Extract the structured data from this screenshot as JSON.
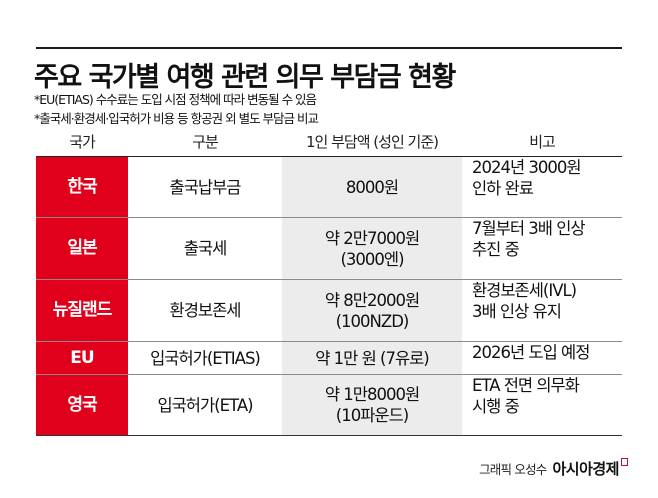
{
  "header": {
    "title": "주요 국가별 여행 관련 의무 부담금 현황",
    "notes": [
      "*EU(ETIAS) 수수료는 도입 시점 정책에 따라 변동될 수 있음",
      "*출국세·환경세·입국허가 비용 등 항공권 외 별도 부담금 비교"
    ]
  },
  "table": {
    "columns": [
      "국가",
      "구분",
      "1인 부담액 (성인 기준)",
      "비고"
    ],
    "rows": [
      {
        "country": "한국",
        "category": "출국납부금",
        "amount": [
          "8000원"
        ],
        "remark": [
          "2024년 3000원",
          "인하 완료"
        ]
      },
      {
        "country": "일본",
        "category": "출국세",
        "amount": [
          "약 2만7000원",
          "(3000엔)"
        ],
        "remark": [
          "7월부터 3배 인상",
          "추진 중"
        ]
      },
      {
        "country": "뉴질랜드",
        "category": "환경보존세",
        "amount": [
          "약 8만2000원",
          "(100NZD)"
        ],
        "remark": [
          "환경보존세(IVL)",
          "3배 인상 유지"
        ]
      },
      {
        "country": "EU",
        "category": "입국허가(ETIAS)",
        "amount": [
          "약 1만 원 (7유로)"
        ],
        "remark": [
          "2026년 도입 예정"
        ]
      },
      {
        "country": "영국",
        "category": "입국허가(ETA)",
        "amount": [
          "약 1만8000원",
          "(10파운드)"
        ],
        "remark": [
          "ETA 전면 의무화",
          "시행 중"
        ]
      }
    ]
  },
  "footer": {
    "credit": "그래픽 오성수",
    "brand": "아시아경제"
  },
  "colors": {
    "accent_red": "#e0001b",
    "amount_column_bg": "#ececec"
  }
}
